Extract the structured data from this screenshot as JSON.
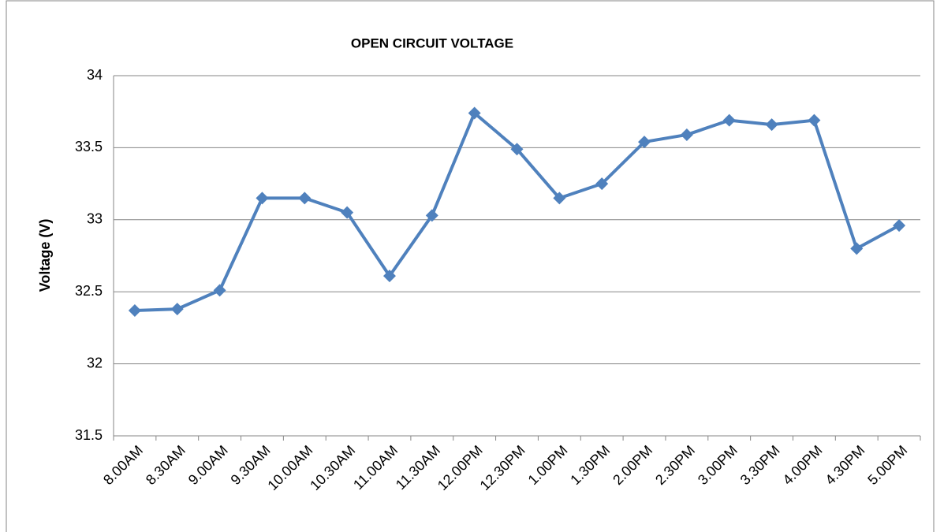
{
  "chart_data": {
    "type": "line",
    "title": "OPEN CIRCUIT VOLTAGE",
    "y_label": "Voltage (V)",
    "categories": [
      "8.00AM",
      "8.30AM",
      "9.00AM",
      "9.30AM",
      "10.00AM",
      "10.30AM",
      "11.00AM",
      "11.30AM",
      "12.00PM",
      "12.30PM",
      "1.00PM",
      "1.30PM",
      "2.00PM",
      "2.30PM",
      "3.00PM",
      "3.30PM",
      "4.00PM",
      "4.30PM",
      "5.00PM"
    ],
    "values": [
      32.37,
      32.38,
      32.51,
      33.15,
      33.15,
      33.05,
      32.61,
      33.03,
      33.74,
      33.49,
      33.15,
      33.25,
      33.54,
      33.59,
      33.69,
      33.66,
      33.69,
      32.8,
      32.96
    ],
    "color": "#4f81bd",
    "ylim": [
      31.5,
      34
    ],
    "yticks": [
      31.5,
      32,
      32.5,
      33,
      33.5,
      34
    ],
    "grid": true
  }
}
